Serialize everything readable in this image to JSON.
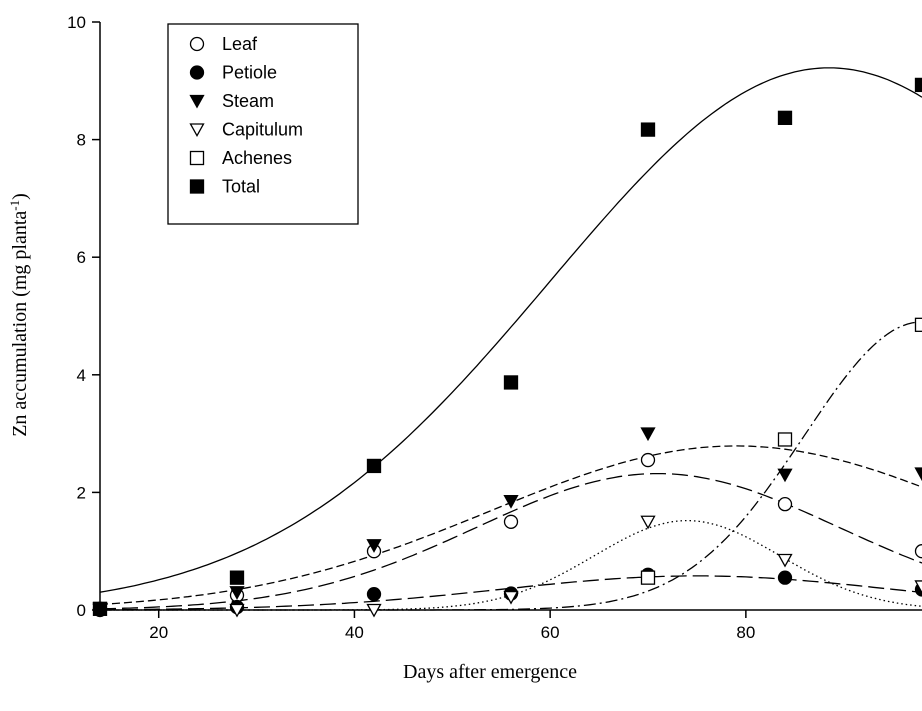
{
  "chart_data": {
    "type": "scatter",
    "xlabel": "Days after emergence",
    "ylabel": "Zn accumulation (mg planta",
    "ylabel_sup": "-1",
    "ylabel_close": ")",
    "xlim": [
      14,
      98
    ],
    "ylim": [
      0,
      10
    ],
    "x_ticks": [
      20,
      40,
      60,
      80
    ],
    "y_ticks": [
      0,
      2,
      4,
      6,
      8,
      10
    ],
    "legend_position": "top-left",
    "grid": false,
    "series": [
      {
        "name": "Leaf",
        "marker": "circle-open",
        "x": [
          14,
          28,
          42,
          56,
          70,
          84,
          98
        ],
        "y": [
          0.02,
          0.25,
          1.0,
          1.5,
          2.55,
          1.8,
          1.0
        ],
        "fit": {
          "type": "gaussian",
          "a": 2.32,
          "x0": 71.0,
          "b": 18.5,
          "dash": "long-dash"
        }
      },
      {
        "name": "Petiole",
        "marker": "circle-filled",
        "x": [
          14,
          28,
          42,
          56,
          70,
          84,
          98
        ],
        "y": [
          0.0,
          0.05,
          0.27,
          0.28,
          0.6,
          0.55,
          0.35
        ],
        "fit": {
          "type": "gaussian",
          "a": 0.58,
          "x0": 75.0,
          "b": 20.0,
          "dash": "long-dash"
        }
      },
      {
        "name": "Steam",
        "marker": "triangle-down-filled",
        "x": [
          14,
          28,
          42,
          56,
          70,
          84,
          98
        ],
        "y": [
          0.02,
          0.3,
          1.1,
          1.85,
          3.0,
          2.3,
          2.32
        ],
        "fit": {
          "type": "gaussian",
          "a": 2.79,
          "x0": 79.0,
          "b": 25.0,
          "dash": "short-dash"
        }
      },
      {
        "name": "Capitulum",
        "marker": "triangle-down-open",
        "x": [
          14,
          28,
          42,
          56,
          70,
          84,
          98
        ],
        "y": [
          0.0,
          0.0,
          0.0,
          0.22,
          1.5,
          0.85,
          0.4
        ],
        "fit": {
          "type": "gaussian",
          "a": 1.52,
          "x0": 74.0,
          "b": 9.5,
          "dash": "dotted"
        }
      },
      {
        "name": "Achenes",
        "marker": "square-open",
        "x": [
          70,
          84,
          98
        ],
        "y": [
          0.55,
          2.9,
          4.85
        ],
        "fit": {
          "type": "gaussian",
          "a": 4.9,
          "x0": 98.0,
          "b": 12.0,
          "dash": "dash-dot"
        }
      },
      {
        "name": "Total",
        "marker": "square-filled",
        "x": [
          14,
          28,
          42,
          56,
          70,
          84,
          98
        ],
        "y": [
          0.02,
          0.55,
          2.45,
          3.87,
          8.17,
          8.37,
          8.93
        ],
        "fit": {
          "type": "gaussian",
          "a": 9.22,
          "x0": 88.5,
          "b": 28.5,
          "dash": "solid"
        }
      }
    ]
  }
}
